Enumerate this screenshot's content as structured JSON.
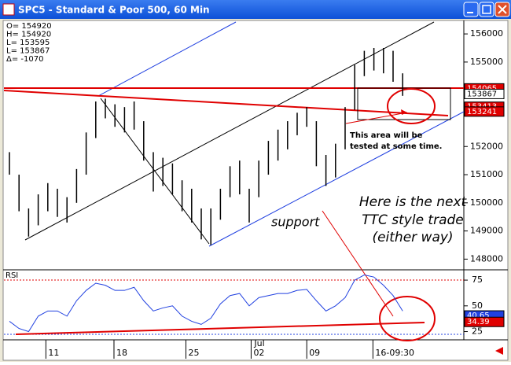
{
  "window": {
    "title": "SPC5 - Standard & Poor 500, 60 Min"
  },
  "chart_data": {
    "type": "ohlc",
    "info": [
      "O= 154920",
      "H= 154920",
      "L= 153595",
      "L= 153867",
      "Δ=   -1070"
    ],
    "price": {
      "high": [
        151800,
        151000,
        149800,
        150300,
        150700,
        150500,
        150200,
        151200,
        152500,
        153600,
        153700,
        153500,
        153400,
        153600,
        152900,
        151800,
        151600,
        151400,
        150800,
        150500,
        149800,
        149800,
        150500,
        151300,
        151500,
        150500,
        151500,
        152200,
        152600,
        152900,
        153200,
        153400,
        152900,
        151700,
        152100,
        153400,
        154900,
        155400,
        155500,
        155500,
        155400,
        154600
      ],
      "low": [
        151000,
        149700,
        148800,
        149200,
        149700,
        149500,
        149300,
        150000,
        151000,
        152300,
        153000,
        152700,
        152500,
        152600,
        151500,
        150400,
        150600,
        150300,
        149700,
        149300,
        148700,
        148500,
        149400,
        150200,
        150300,
        149300,
        150200,
        151000,
        151500,
        151900,
        152400,
        152700,
        151300,
        150600,
        150900,
        151900,
        153300,
        154500,
        154700,
        154600,
        154300,
        153800
      ]
    },
    "ylim": [
      147620,
      156450
    ],
    "yticks": [
      148000,
      149000,
      150000,
      151000,
      152000,
      155000,
      156000
    ],
    "price_tags": [
      {
        "value": 154065,
        "color": "#e00000"
      },
      {
        "value": 153867,
        "color": "#ffffff"
      },
      {
        "value": 153413,
        "color": "#e00000"
      },
      {
        "value": 153241,
        "color": "#e00000"
      }
    ],
    "xticks": [
      {
        "value": 3.8,
        "label": "11"
      },
      {
        "value": 10.9,
        "label": "18"
      },
      {
        "value": 18.4,
        "label": "25"
      },
      {
        "value": 25.2,
        "label": "02"
      },
      {
        "value": 31,
        "label": "09"
      },
      {
        "value": 37.9,
        "label": "16-09:30"
      }
    ],
    "month_label": "Jul",
    "annotations": [
      "This area will be",
      "tested at some time.",
      "support",
      "Here is the next",
      "TTC style trade",
      "(either way)"
    ],
    "rsi": {
      "label": "RSI",
      "color": "#2040e0",
      "values": [
        35,
        28,
        25,
        40,
        45,
        45,
        40,
        55,
        65,
        72,
        70,
        65,
        65,
        68,
        55,
        45,
        48,
        50,
        40,
        35,
        32,
        38,
        52,
        60,
        62,
        50,
        58,
        60,
        62,
        62,
        65,
        66,
        55,
        45,
        50,
        58,
        75,
        80,
        78,
        70,
        60,
        45
      ],
      "ylim": [
        17,
        85
      ],
      "yticks": [
        25,
        50,
        75
      ],
      "tags": [
        {
          "value": 40.65,
          "color": "#2040e0"
        },
        {
          "value": 34.39,
          "color": "#e00000"
        }
      ]
    }
  }
}
